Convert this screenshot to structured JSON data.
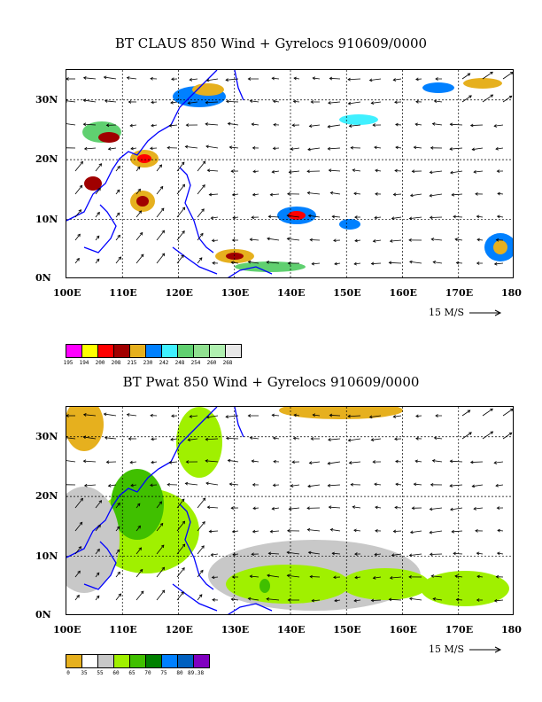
{
  "panels": [
    {
      "title": "BT CLAUS 850 Wind + Gyrelocs 910609/0000",
      "lat_labels": [
        "30N",
        "20N",
        "10N",
        "0N"
      ],
      "lon_labels": [
        "100E",
        "110E",
        "120E",
        "130E",
        "140E",
        "150E",
        "160E",
        "170E",
        "180"
      ],
      "reference_vector": "15 M/S",
      "legend": {
        "labels": [
          "195",
          "194",
          "200",
          "208",
          "215",
          "230",
          "242",
          "248",
          "254",
          "260",
          "268"
        ],
        "colors": [
          "#ff00ff",
          "#ffff00",
          "#ff0000",
          "#a00000",
          "#e6b01e",
          "#0080ff",
          "#40f0ff",
          "#60d070",
          "#90e090",
          "#b0f0b0",
          "#e8e8e8"
        ]
      }
    },
    {
      "title": "BT Pwat 850 Wind + Gyrelocs 910609/0000",
      "lat_labels": [
        "30N",
        "20N",
        "10N",
        "0N"
      ],
      "lon_labels": [
        "100E",
        "110E",
        "120E",
        "130E",
        "140E",
        "150E",
        "160E",
        "170E",
        "180"
      ],
      "reference_vector": "15 M/S",
      "legend": {
        "labels": [
          "0",
          "35",
          "55",
          "60",
          "65",
          "70",
          "75",
          "80",
          "89.38"
        ],
        "colors": [
          "#e6b01e",
          "#ffffff",
          "#c8c8c8",
          "#a0f000",
          "#40c000",
          "#008000",
          "#0080ff",
          "#0060c0",
          "#8000c0"
        ]
      }
    }
  ]
}
